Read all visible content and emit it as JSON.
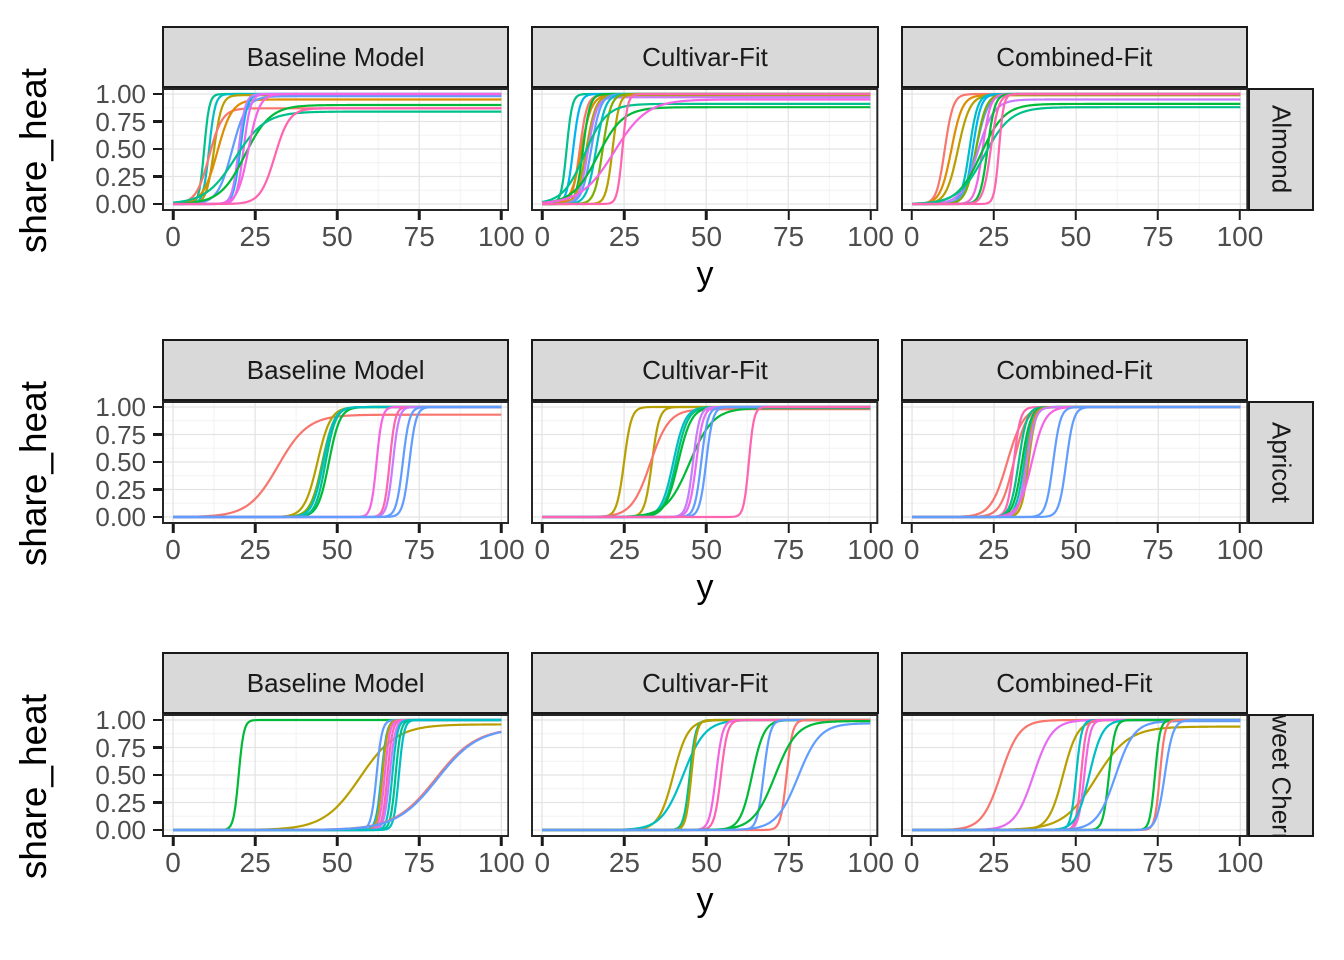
{
  "figure": {
    "y_axis_title": "share_heat",
    "x_axis_title": "y",
    "y_tick_labels": [
      "1.00",
      "0.75",
      "0.50",
      "0.25",
      "0.00"
    ],
    "x_tick_labels": [
      "0",
      "25",
      "50",
      "75",
      "100"
    ],
    "column_facets": [
      "Baseline Model",
      "Cultivar-Fit",
      "Combined-Fit"
    ],
    "row_facets": [
      "Almond",
      "Apricot",
      "Sweet Cherry"
    ],
    "row_facet_note": "third row strip label is clipped by the strip height, showing only 'eet Che'",
    "colors": {
      "strip_background": "#d9d9d9",
      "strip_border": "#1a1a1a",
      "panel_border": "#262626",
      "panel_background": "#ffffff",
      "grid_major": "#e4e4e4",
      "grid_minor": "#f2f2f2",
      "tick_text": "#4d4d4d",
      "axis_title_text": "#000000",
      "palette": [
        "#F8766D",
        "#DE8C00",
        "#B79F00",
        "#7CAE00",
        "#00BA38",
        "#00C08B",
        "#00BFC4",
        "#00B4F0",
        "#619CFF",
        "#C77CFF",
        "#E76BF3",
        "#F564E3",
        "#FF64B0"
      ]
    }
  },
  "chart_data": [
    {
      "type": "line",
      "facet_row": "Almond",
      "xlabel": "y",
      "ylabel": "share_heat",
      "xlim": [
        0,
        100
      ],
      "ylim": [
        0,
        1.05
      ],
      "x_ticks": [
        0,
        25,
        50,
        75,
        100
      ],
      "y_ticks": [
        0,
        0.25,
        0.5,
        0.75,
        1.0
      ],
      "grid": "major+minor",
      "legend": "none",
      "curve_model": "y = ymax / (1 + exp(-k*(x - x0)))",
      "panels": [
        {
          "title": "Baseline Model",
          "curves": [
            {
              "color": "#00C08B",
              "x0": 9.5,
              "k": 1.3,
              "ymax": 1.0
            },
            {
              "color": "#00BFC4",
              "x0": 11,
              "k": 1.1,
              "ymax": 1.0
            },
            {
              "color": "#B79F00",
              "x0": 12.5,
              "k": 0.85,
              "ymax": 0.99
            },
            {
              "color": "#F8766D",
              "x0": 11,
              "k": 0.5,
              "ymax": 0.87
            },
            {
              "color": "#DE8C00",
              "x0": 13.5,
              "k": 0.45,
              "ymax": 0.95
            },
            {
              "color": "#619CFF",
              "x0": 18,
              "k": 0.45,
              "ymax": 0.98
            },
            {
              "color": "#00B4F0",
              "x0": 20.5,
              "k": 0.95,
              "ymax": 1.0
            },
            {
              "color": "#C77CFF",
              "x0": 20,
              "k": 1.0,
              "ymax": 1.0
            },
            {
              "color": "#E76BF3",
              "x0": 21.5,
              "k": 0.95,
              "ymax": 1.0
            },
            {
              "color": "#00BA38",
              "x0": 22,
              "k": 0.26,
              "ymax": 0.9
            },
            {
              "color": "#00C08B",
              "x0": 19,
              "k": 0.22,
              "ymax": 0.84
            },
            {
              "color": "#F564E3",
              "x0": 23,
              "k": 0.6,
              "ymax": 1.0
            },
            {
              "color": "#FF64B0",
              "x0": 31,
              "k": 0.45,
              "ymax": 0.87
            }
          ]
        },
        {
          "title": "Cultivar-Fit",
          "curves": [
            {
              "color": "#00C08B",
              "x0": 7.5,
              "k": 1.2,
              "ymax": 1.0
            },
            {
              "color": "#00B4F0",
              "x0": 9.5,
              "k": 1.0,
              "ymax": 1.0
            },
            {
              "color": "#F8766D",
              "x0": 11.5,
              "k": 0.9,
              "ymax": 0.99
            },
            {
              "color": "#DE8C00",
              "x0": 12,
              "k": 0.65,
              "ymax": 0.99
            },
            {
              "color": "#00BA38",
              "x0": 12.5,
              "k": 0.95,
              "ymax": 1.0
            },
            {
              "color": "#B79F00",
              "x0": 13.5,
              "k": 0.7,
              "ymax": 0.99
            },
            {
              "color": "#C77CFF",
              "x0": 14,
              "k": 0.75,
              "ymax": 0.97
            },
            {
              "color": "#619CFF",
              "x0": 15,
              "k": 0.7,
              "ymax": 1.0
            },
            {
              "color": "#00BFC4",
              "x0": 16.5,
              "k": 0.7,
              "ymax": 1.0
            },
            {
              "color": "#7CAE00",
              "x0": 18.5,
              "k": 0.8,
              "ymax": 1.0
            },
            {
              "color": "#B79F00",
              "x0": 21.5,
              "k": 1.0,
              "ymax": 1.0
            },
            {
              "color": "#00C08B",
              "x0": 13,
              "k": 0.3,
              "ymax": 0.91
            },
            {
              "color": "#00BA38",
              "x0": 17,
              "k": 0.26,
              "ymax": 0.88
            },
            {
              "color": "#F564E3",
              "x0": 22,
              "k": 0.2,
              "ymax": 0.95
            },
            {
              "color": "#FF64B0",
              "x0": 24.5,
              "k": 1.3,
              "ymax": 1.0
            }
          ]
        },
        {
          "title": "Combined-Fit",
          "curves": [
            {
              "color": "#F8766D",
              "x0": 10,
              "k": 0.8,
              "ymax": 1.0
            },
            {
              "color": "#DE8C00",
              "x0": 12,
              "k": 0.6,
              "ymax": 0.99
            },
            {
              "color": "#B79F00",
              "x0": 14,
              "k": 0.55,
              "ymax": 0.99
            },
            {
              "color": "#00BFC4",
              "x0": 17.5,
              "k": 0.8,
              "ymax": 1.0
            },
            {
              "color": "#00B4F0",
              "x0": 18.5,
              "k": 0.8,
              "ymax": 1.0
            },
            {
              "color": "#619CFF",
              "x0": 19.5,
              "k": 0.55,
              "ymax": 1.0
            },
            {
              "color": "#7CAE00",
              "x0": 19.5,
              "k": 0.65,
              "ymax": 1.0
            },
            {
              "color": "#C77CFF",
              "x0": 20,
              "k": 0.4,
              "ymax": 0.95
            },
            {
              "color": "#F564E3",
              "x0": 21.5,
              "k": 0.85,
              "ymax": 1.0
            },
            {
              "color": "#00BA38",
              "x0": 23,
              "k": 0.9,
              "ymax": 1.0
            },
            {
              "color": "#00BA38",
              "x0": 21,
              "k": 0.28,
              "ymax": 0.91
            },
            {
              "color": "#00C08B",
              "x0": 22,
              "k": 0.25,
              "ymax": 0.88
            },
            {
              "color": "#FF64B0",
              "x0": 24,
              "k": 0.85,
              "ymax": 1.0
            },
            {
              "color": "#FF64B0",
              "x0": 26.5,
              "k": 1.4,
              "ymax": 1.0
            }
          ]
        }
      ]
    },
    {
      "type": "line",
      "facet_row": "Apricot",
      "xlabel": "y",
      "ylabel": "share_heat",
      "xlim": [
        0,
        100
      ],
      "ylim": [
        0,
        1.05
      ],
      "x_ticks": [
        0,
        25,
        50,
        75,
        100
      ],
      "y_ticks": [
        0,
        0.25,
        0.5,
        0.75,
        1.0
      ],
      "grid": "major+minor",
      "legend": "none",
      "curve_model": "y = ymax / (1 + exp(-k*(x - x0)))",
      "panels": [
        {
          "title": "Baseline Model",
          "curves": [
            {
              "color": "#F8766D",
              "x0": 32,
              "k": 0.22,
              "ymax": 0.93
            },
            {
              "color": "#B79F00",
              "x0": 44,
              "k": 0.5,
              "ymax": 1.0
            },
            {
              "color": "#7CAE00",
              "x0": 45.5,
              "k": 0.55,
              "ymax": 1.0
            },
            {
              "color": "#00BA38",
              "x0": 47.5,
              "k": 0.6,
              "ymax": 1.0
            },
            {
              "color": "#00C08B",
              "x0": 46.5,
              "k": 0.65,
              "ymax": 1.0
            },
            {
              "color": "#00BFC4",
              "x0": 45.8,
              "k": 0.6,
              "ymax": 1.0
            },
            {
              "color": "#F564E3",
              "x0": 62,
              "k": 1.2,
              "ymax": 1.0
            },
            {
              "color": "#FF64B0",
              "x0": 66,
              "k": 1.2,
              "ymax": 1.0
            },
            {
              "color": "#C77CFF",
              "x0": 67,
              "k": 1.1,
              "ymax": 1.0
            },
            {
              "color": "#619CFF",
              "x0": 70,
              "k": 1.0,
              "ymax": 1.0
            },
            {
              "color": "#619CFF",
              "x0": 72,
              "k": 1.0,
              "ymax": 1.0
            }
          ]
        },
        {
          "title": "Cultivar-Fit",
          "curves": [
            {
              "color": "#B79F00",
              "x0": 25,
              "k": 0.9,
              "ymax": 1.0
            },
            {
              "color": "#B79F00",
              "x0": 33.5,
              "k": 0.9,
              "ymax": 1.0
            },
            {
              "color": "#F8766D",
              "x0": 33,
              "k": 0.35,
              "ymax": 0.98
            },
            {
              "color": "#00BFC4",
              "x0": 40,
              "k": 0.55,
              "ymax": 1.0
            },
            {
              "color": "#00C08B",
              "x0": 40.8,
              "k": 0.55,
              "ymax": 1.0
            },
            {
              "color": "#00BA38",
              "x0": 41.5,
              "k": 0.5,
              "ymax": 1.0
            },
            {
              "color": "#00BA38",
              "x0": 45,
              "k": 0.28,
              "ymax": 0.99
            },
            {
              "color": "#C77CFF",
              "x0": 46,
              "k": 1.0,
              "ymax": 1.0
            },
            {
              "color": "#E76BF3",
              "x0": 47,
              "k": 0.95,
              "ymax": 1.0
            },
            {
              "color": "#619CFF",
              "x0": 48.5,
              "k": 1.0,
              "ymax": 1.0
            },
            {
              "color": "#619CFF",
              "x0": 50,
              "k": 1.0,
              "ymax": 1.0
            },
            {
              "color": "#FF64B0",
              "x0": 63,
              "k": 1.3,
              "ymax": 1.0
            }
          ]
        },
        {
          "title": "Combined-Fit",
          "curves": [
            {
              "color": "#F8766D",
              "x0": 29,
              "k": 0.4,
              "ymax": 1.0
            },
            {
              "color": "#F8766D",
              "x0": 31,
              "k": 0.5,
              "ymax": 1.0
            },
            {
              "color": "#FF64B0",
              "x0": 31,
              "k": 1.0,
              "ymax": 1.0
            },
            {
              "color": "#00C08B",
              "x0": 32.5,
              "k": 0.8,
              "ymax": 1.0
            },
            {
              "color": "#00BA38",
              "x0": 33.5,
              "k": 0.75,
              "ymax": 1.0
            },
            {
              "color": "#00BFC4",
              "x0": 34.2,
              "k": 0.8,
              "ymax": 1.0
            },
            {
              "color": "#DE8C00",
              "x0": 34.8,
              "k": 0.9,
              "ymax": 1.0
            },
            {
              "color": "#B79F00",
              "x0": 35.5,
              "k": 0.95,
              "ymax": 1.0
            },
            {
              "color": "#C77CFF",
              "x0": 35,
              "k": 0.8,
              "ymax": 1.0
            },
            {
              "color": "#F564E3",
              "x0": 36.5,
              "k": 0.5,
              "ymax": 1.0
            },
            {
              "color": "#619CFF",
              "x0": 43,
              "k": 0.9,
              "ymax": 1.0
            },
            {
              "color": "#619CFF",
              "x0": 47,
              "k": 0.9,
              "ymax": 1.0
            }
          ]
        }
      ]
    },
    {
      "type": "line",
      "facet_row": "Sweet Cherry",
      "xlabel": "y",
      "ylabel": "share_heat",
      "xlim": [
        0,
        100
      ],
      "ylim": [
        0,
        1.05
      ],
      "x_ticks": [
        0,
        25,
        50,
        75,
        100
      ],
      "y_ticks": [
        0,
        0.25,
        0.5,
        0.75,
        1.0
      ],
      "grid": "major+minor",
      "legend": "none",
      "curve_model": "y = ymax / (1 + exp(-k*(x - x0)))",
      "panels": [
        {
          "title": "Baseline Model",
          "curves": [
            {
              "color": "#00BA38",
              "x0": 20,
              "k": 1.3,
              "ymax": 1.0
            },
            {
              "color": "#B79F00",
              "x0": 57,
              "k": 0.18,
              "ymax": 0.96
            },
            {
              "color": "#619CFF",
              "x0": 62,
              "k": 1.2,
              "ymax": 1.0
            },
            {
              "color": "#00B4F0",
              "x0": 63.5,
              "k": 1.2,
              "ymax": 1.0
            },
            {
              "color": "#B79F00",
              "x0": 63.8,
              "k": 1.3,
              "ymax": 1.0
            },
            {
              "color": "#F564E3",
              "x0": 64.5,
              "k": 1.3,
              "ymax": 1.0
            },
            {
              "color": "#FF64B0",
              "x0": 65.3,
              "k": 1.3,
              "ymax": 1.0
            },
            {
              "color": "#C77CFF",
              "x0": 66,
              "k": 1.2,
              "ymax": 1.0
            },
            {
              "color": "#00BFC4",
              "x0": 66.8,
              "k": 1.3,
              "ymax": 1.0
            },
            {
              "color": "#00C08B",
              "x0": 67.8,
              "k": 1.3,
              "ymax": 1.0
            },
            {
              "color": "#00BFC4",
              "x0": 68.8,
              "k": 1.3,
              "ymax": 1.0
            },
            {
              "color": "#F8766D",
              "x0": 80,
              "k": 0.16,
              "ymax": 0.93
            },
            {
              "color": "#619CFF",
              "x0": 80.5,
              "k": 0.16,
              "ymax": 0.93
            }
          ]
        },
        {
          "title": "Cultivar-Fit",
          "curves": [
            {
              "color": "#B79F00",
              "x0": 40,
              "k": 0.45,
              "ymax": 1.0
            },
            {
              "color": "#00BFC4",
              "x0": 43,
              "k": 0.3,
              "ymax": 1.0
            },
            {
              "color": "#00C08B",
              "x0": 45,
              "k": 1.1,
              "ymax": 1.0
            },
            {
              "color": "#B79F00",
              "x0": 45.5,
              "k": 1.2,
              "ymax": 1.0
            },
            {
              "color": "#F564E3",
              "x0": 53,
              "k": 1.0,
              "ymax": 1.0
            },
            {
              "color": "#FF64B0",
              "x0": 54.5,
              "k": 1.0,
              "ymax": 1.0
            },
            {
              "color": "#00BA38",
              "x0": 64,
              "k": 0.55,
              "ymax": 1.0
            },
            {
              "color": "#619CFF",
              "x0": 67.5,
              "k": 1.0,
              "ymax": 1.0
            },
            {
              "color": "#F8766D",
              "x0": 74.5,
              "k": 1.1,
              "ymax": 1.0
            },
            {
              "color": "#00BA38",
              "x0": 71,
              "k": 0.3,
              "ymax": 0.99
            },
            {
              "color": "#619CFF",
              "x0": 78,
              "k": 0.3,
              "ymax": 0.97
            }
          ]
        },
        {
          "title": "Combined-Fit",
          "curves": [
            {
              "color": "#F8766D",
              "x0": 27,
              "k": 0.35,
              "ymax": 1.0
            },
            {
              "color": "#E76BF3",
              "x0": 37,
              "k": 0.35,
              "ymax": 1.0
            },
            {
              "color": "#B79F00",
              "x0": 46,
              "k": 0.45,
              "ymax": 1.0
            },
            {
              "color": "#B79F00",
              "x0": 56,
              "k": 0.2,
              "ymax": 0.94
            },
            {
              "color": "#00BFC4",
              "x0": 50,
              "k": 1.2,
              "ymax": 1.0
            },
            {
              "color": "#FF64B0",
              "x0": 51.5,
              "k": 1.3,
              "ymax": 1.0
            },
            {
              "color": "#F564E3",
              "x0": 52.5,
              "k": 1.1,
              "ymax": 1.0
            },
            {
              "color": "#00BFC4",
              "x0": 54,
              "k": 0.5,
              "ymax": 1.0
            },
            {
              "color": "#00BA38",
              "x0": 60,
              "k": 1.1,
              "ymax": 1.0
            },
            {
              "color": "#619CFF",
              "x0": 62,
              "k": 0.35,
              "ymax": 0.99
            },
            {
              "color": "#00BA38",
              "x0": 74,
              "k": 1.3,
              "ymax": 1.0
            },
            {
              "color": "#F8766D",
              "x0": 75.5,
              "k": 1.3,
              "ymax": 1.0
            },
            {
              "color": "#619CFF",
              "x0": 77,
              "k": 0.8,
              "ymax": 1.0
            }
          ]
        }
      ]
    }
  ]
}
